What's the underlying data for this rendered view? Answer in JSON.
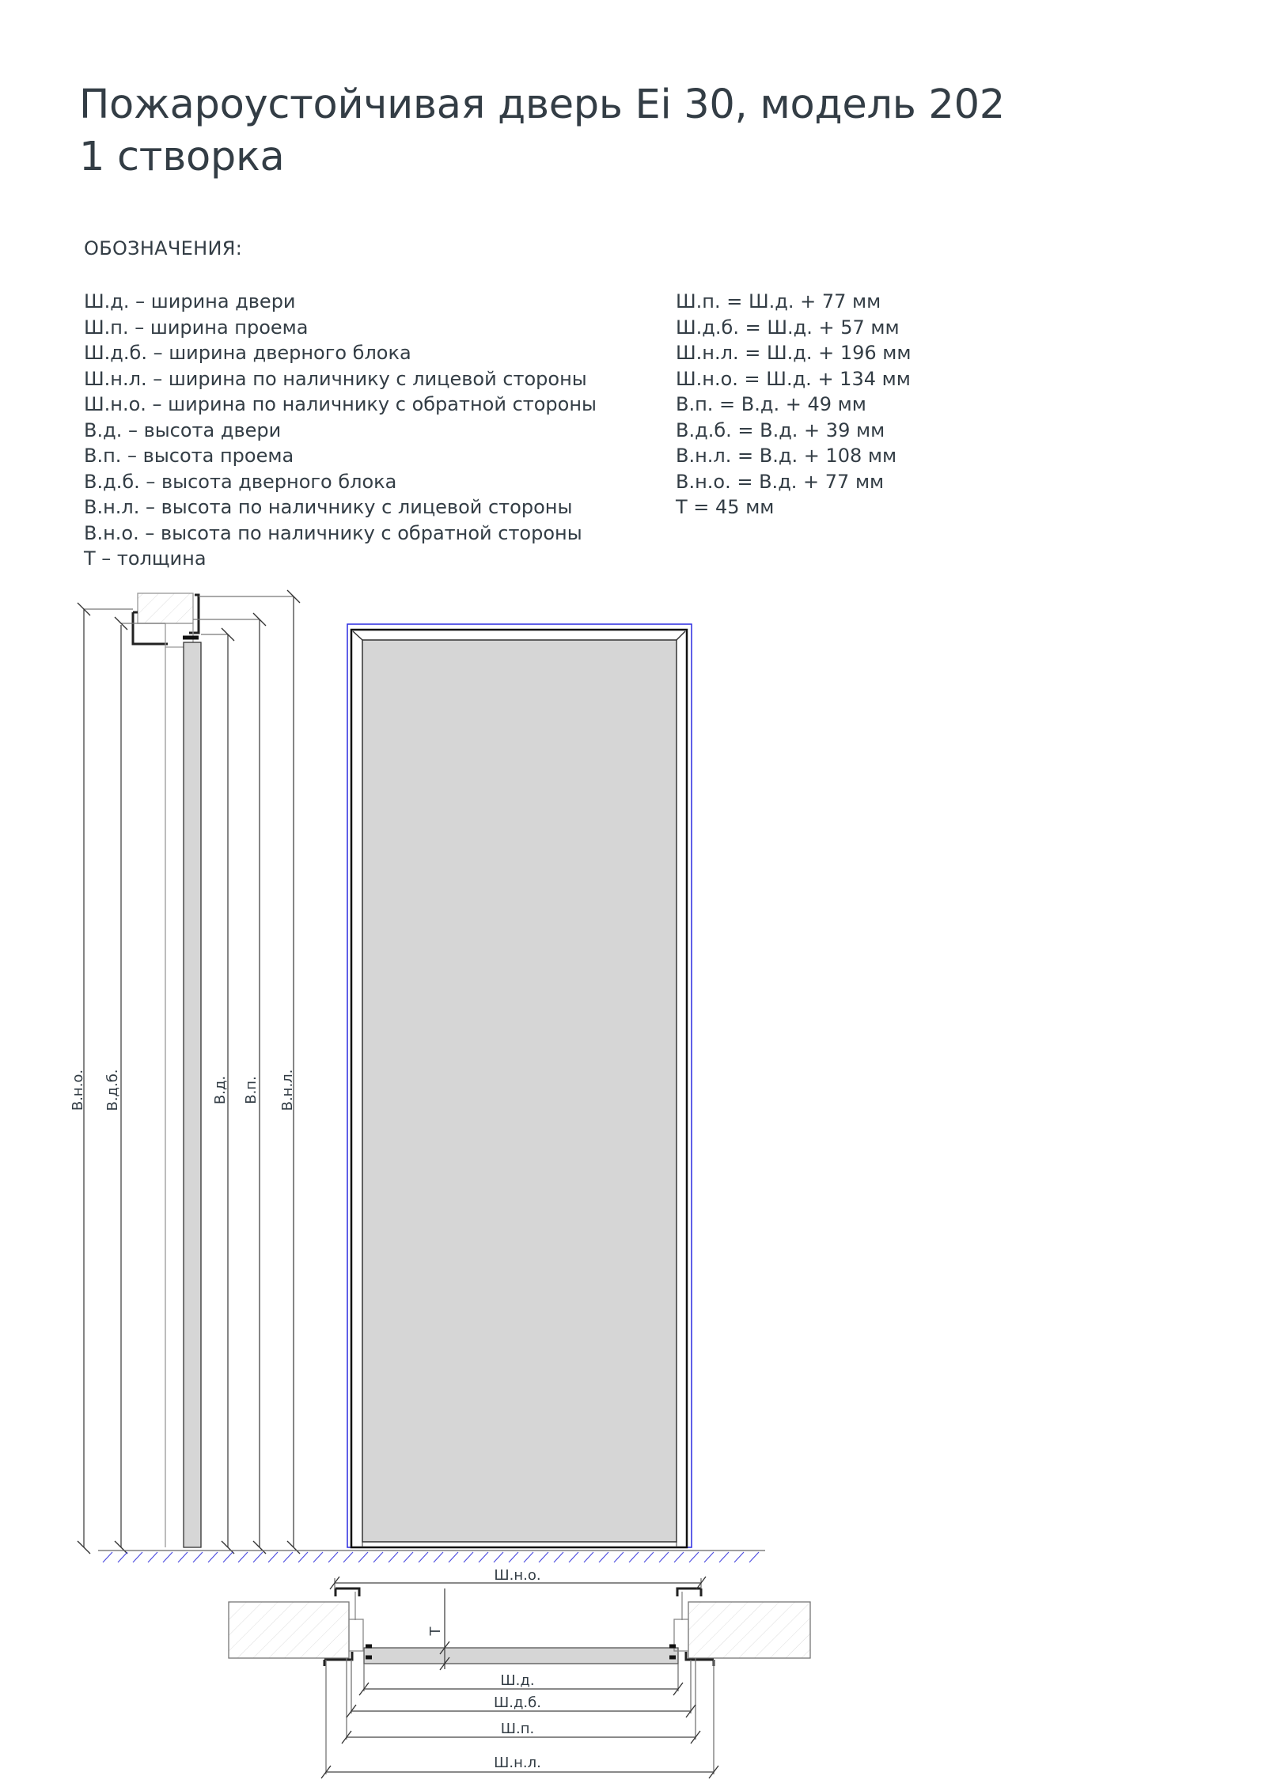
{
  "title": {
    "line1": "Пожароустойчивая дверь Ei 30, модель 202",
    "line2": "1 створка"
  },
  "legend": {
    "heading": "ОБОЗНАЧЕНИЯ:",
    "definitions": [
      "Ш.д. – ширина двери",
      "Ш.п. – ширина проема",
      "Ш.д.б. – ширина дверного блока",
      "Ш.н.л. – ширина по наличнику с лицевой стороны",
      "Ш.н.о. – ширина по наличнику с обратной стороны",
      "В.д. – высота двери",
      "В.п. – высота проема",
      "В.д.б. – высота дверного блока",
      "В.н.л. – высота по наличнику с лицевой стороны",
      "В.н.о. – высота по наличнику с обратной стороны",
      "Т – толщина"
    ],
    "formulas": [
      "Ш.п. = Ш.д. + 77 мм",
      "Ш.д.б. = Ш.д. + 57 мм",
      "Ш.н.л. = Ш.д. + 196 мм",
      "Ш.н.о. = Ш.д. + 134 мм",
      "В.п. = В.д. + 49 мм",
      "В.д.б. = В.д. + 39 мм",
      "В.н.л. = В.д. + 108 мм",
      "В.н.о. = В.д. + 77 мм",
      "Т = 45 мм"
    ]
  },
  "drawing": {
    "side_labels": {
      "vno": "В.н.о.",
      "vdb": "В.д.б.",
      "vd": "В.д.",
      "vp": "В.п.",
      "vnl": "В.н.л."
    },
    "plan_labels": {
      "sho": "Ш.н.о.",
      "t": "Т",
      "shd": "Ш.д.",
      "shdb": "Ш.д.б.",
      "shp": "Ш.п.",
      "shnl": "Ш.н.л."
    },
    "colors": {
      "line": "#333333",
      "leaf_fill": "#d6d6d6",
      "outline_blue": "#2a2ae0",
      "floor_hatch": "#5050e0"
    }
  }
}
